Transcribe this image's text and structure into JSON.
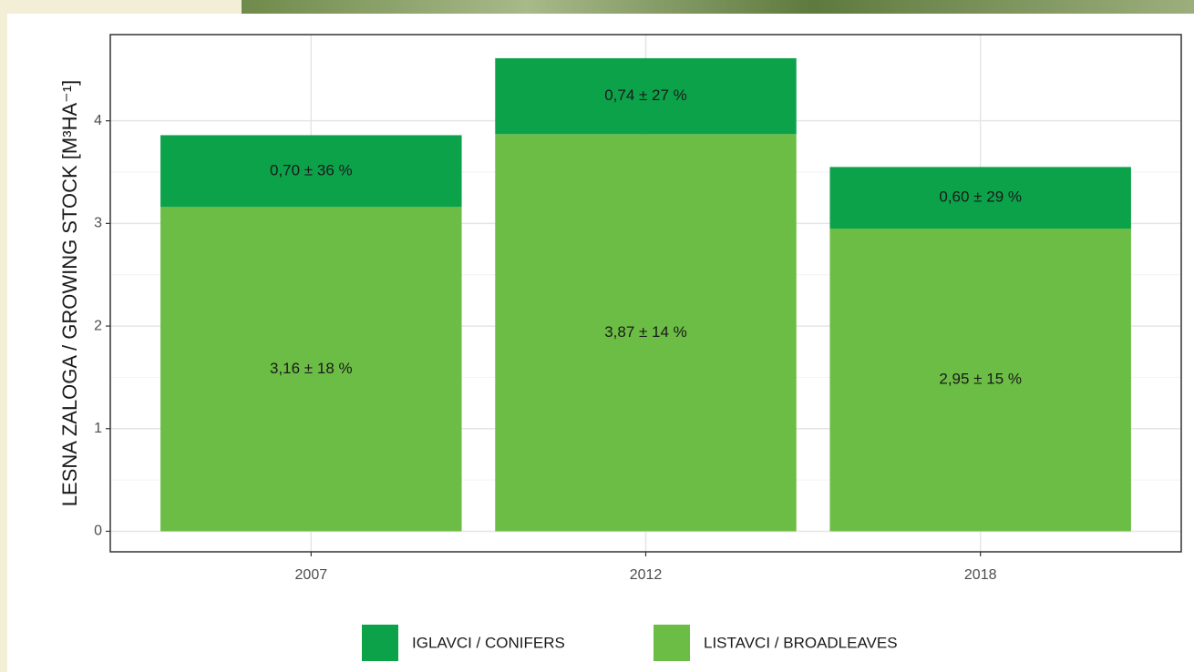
{
  "chart_data": {
    "type": "stacked_bar",
    "y_label": "LESNA ZALOGA / GROWING STOCK [M³HA⁻¹]",
    "categories": [
      "2007",
      "2012",
      "2018"
    ],
    "series": [
      {
        "name": "IGLAVCI / CONIFERS",
        "color": "#0ca24a",
        "values": [
          0.7,
          0.74,
          0.6
        ],
        "value_labels": [
          "0,70 ± 36 %",
          "0,74 ± 27 %",
          "0,60 ± 29 %"
        ]
      },
      {
        "name": "LISTAVCI / BROADLEAVES",
        "color": "#6cbd45",
        "values": [
          3.16,
          3.87,
          2.95
        ],
        "value_labels": [
          "3,16 ± 18 %",
          "3,87 ± 14 %",
          "2,95 ± 15 %"
        ]
      }
    ],
    "ylim": [
      -0.2,
      4.84
    ],
    "yticks": [
      0,
      1,
      2,
      3,
      4
    ],
    "grid": true,
    "legend": "bottom"
  }
}
